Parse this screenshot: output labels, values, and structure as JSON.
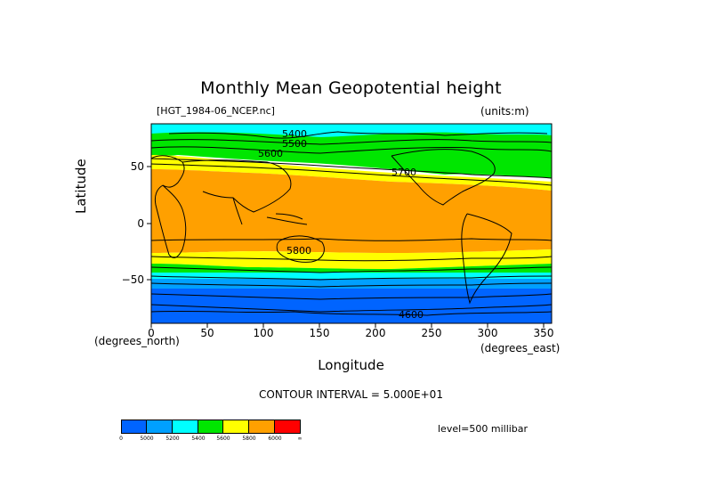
{
  "title": "Monthly Mean Geopotential height",
  "file_label": "[HGT_1984-06_NCEP.nc]",
  "units_label": "(units:m)",
  "y_axis_label": "Latitude",
  "x_axis_label": "Longitude",
  "y_units_note": "(degrees_north)",
  "x_units_note": "(degrees_east)",
  "contour_interval": "CONTOUR INTERVAL = 5.000E+01",
  "level_label": "level=500 millibar",
  "x_ticks": [
    "0",
    "50",
    "100",
    "150",
    "200",
    "250",
    "300",
    "350"
  ],
  "y_ticks": [
    "50",
    "0",
    "−50"
  ],
  "contour_labels": [
    "5400",
    "5500",
    "5600",
    "5700",
    "5800",
    "4600"
  ],
  "colorbar": {
    "colors": [
      "#0064ff",
      "#00a0ff",
      "#00ffff",
      "#00e600",
      "#ffff00",
      "#ffa000",
      "#ff0000"
    ],
    "tick_labels": [
      "0",
      "5000",
      "5200",
      "5400",
      "5600",
      "5800",
      "6000",
      "∞"
    ]
  },
  "band_colors": {
    "dark_blue": "#0064ff",
    "light_blue": "#00a0ff",
    "cyan": "#00ffff",
    "green": "#00e600",
    "yellow": "#ffff00",
    "orange": "#ffa000"
  }
}
